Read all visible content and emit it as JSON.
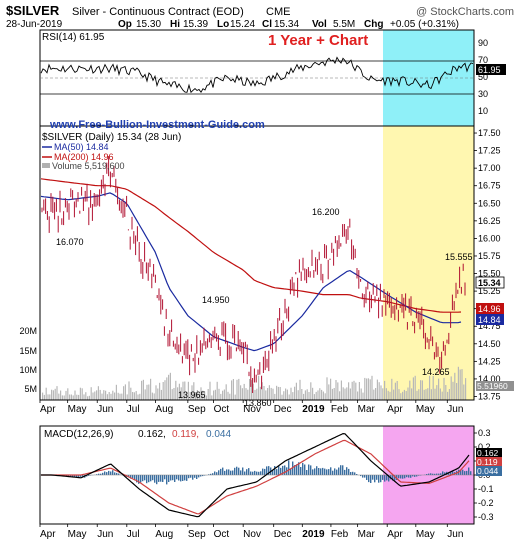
{
  "header": {
    "symbol": "$SILVER",
    "name": "Silver - Continuous Contract (EOD)",
    "exchange": "CME",
    "watermark": "@ StockCharts.com",
    "date": "28-Jun-2019",
    "op_label": "Op",
    "op": "15.30",
    "hi_label": "Hi",
    "hi": "15.39",
    "lo_label": "Lo",
    "lo": "15.24",
    "cl_label": "Cl",
    "cl": "15.34",
    "vol_label": "Vol",
    "vol": "5.5M",
    "chg_label": "Chg",
    "chg": "+0.05 (+0.31%)"
  },
  "colors": {
    "price": "#b01030",
    "ma50": "#1a2aa0",
    "ma200": "#c01010",
    "macd_line": "#000000",
    "macd_signal": "#d04040",
    "hist": "#3a6ea0",
    "rsi_highlight": "#8ff0f8",
    "price_highlight": "#fff7b0",
    "macd_highlight": "#f5a6f0",
    "volume": "#b0b0b0",
    "title_red": "#e02020",
    "url_blue": "#2040b0"
  },
  "rsi_panel": {
    "label": "RSI(14) 61.95",
    "title": "1 Year + Chart",
    "ticks": [
      "90",
      "70",
      "50",
      "30",
      "10"
    ],
    "badge": "61.95"
  },
  "price_panel": {
    "url": "www.Free-Bullion-Investment-Guide.com",
    "legend_main": "$SILVER (Daily) 15.34 (28 Jun)",
    "legend_ma50": "MA(50) 14.84",
    "legend_ma200": "MA(200) 14.96",
    "legend_volume": "Volume 5,519,600",
    "price_ticks": [
      "17.50",
      "17.25",
      "17.00",
      "16.75",
      "16.50",
      "16.25",
      "16.00",
      "15.75",
      "15.50",
      "15.25",
      "15.00",
      "14.75",
      "14.50",
      "14.25",
      "14.00",
      "13.75"
    ],
    "volume_ticks": [
      "20M",
      "15M",
      "10M",
      "5M"
    ],
    "badges": {
      "price": "15.34",
      "ma200": "14.96",
      "ma50": "14.84",
      "volume": "5.51960"
    },
    "annotations": {
      "a": "16.070",
      "b": "14.950",
      "c": "13.965",
      "d": "13.860",
      "e": "16.200",
      "f": "15.555",
      "g": "14.265"
    }
  },
  "macd_panel": {
    "label_name": "MACD(12,26,9)",
    "label_macd": "0.162,",
    "label_signal": "0.119,",
    "label_hist": "0.044",
    "ticks": [
      "0.3",
      "0.2",
      "0.1",
      "0.0",
      "-0.1",
      "-0.2",
      "-0.3"
    ],
    "badges": {
      "macd": "0.162",
      "signal": "0.119",
      "hist": "0.044"
    }
  },
  "x_axis": {
    "labels": [
      "Apr",
      "May",
      "Jun",
      "Jul",
      "Aug",
      "Sep",
      "Oct",
      "Nov",
      "Dec",
      "2019",
      "Feb",
      "Mar",
      "Apr",
      "May",
      "Jun"
    ]
  },
  "chart_data": [
    {
      "type": "line",
      "title": "",
      "name": "RSI(14)",
      "ylim": [
        0,
        100
      ],
      "reference_lines": [
        70,
        50,
        30
      ],
      "x": [
        "2018-06",
        "2018-07",
        "2018-08",
        "2018-09",
        "2018-10",
        "2018-11",
        "2018-12",
        "2019-01",
        "2019-02",
        "2019-03",
        "2019-04",
        "2019-05",
        "2019-06"
      ],
      "series": [
        {
          "name": "RSI(14)",
          "values": [
            60,
            55,
            42,
            38,
            50,
            43,
            55,
            65,
            70,
            48,
            47,
            42,
            61.95
          ]
        }
      ]
    },
    {
      "type": "line",
      "title": "$SILVER (Daily) 15.34 (28 Jun)",
      "ylim": [
        13.7,
        17.6
      ],
      "x": [
        "2018-04-02",
        "2018-05-01",
        "2018-06-01",
        "2018-06-15",
        "2018-07-02",
        "2018-08-01",
        "2018-08-15",
        "2018-09-04",
        "2018-10-01",
        "2018-11-01",
        "2018-11-13",
        "2018-12-03",
        "2019-01-02",
        "2019-01-24",
        "2019-02-20",
        "2019-03-04",
        "2019-04-01",
        "2019-05-01",
        "2019-05-28",
        "2019-06-14",
        "2019-06-28"
      ],
      "series": [
        {
          "name": "$SILVER",
          "values": [
            16.3,
            16.5,
            16.5,
            17.05,
            16.3,
            15.3,
            14.6,
            14.25,
            14.6,
            14.5,
            13.86,
            14.5,
            15.6,
            15.6,
            16.2,
            15.3,
            15.1,
            14.8,
            14.27,
            15.4,
            15.34
          ]
        },
        {
          "name": "MA(50)",
          "values": [
            16.6,
            16.55,
            16.6,
            16.65,
            16.5,
            15.8,
            15.3,
            14.9,
            14.6,
            14.45,
            14.4,
            14.5,
            14.9,
            15.3,
            15.55,
            15.45,
            15.2,
            14.95,
            14.8,
            14.8,
            14.84
          ]
        },
        {
          "name": "MA(200)",
          "values": [
            16.85,
            16.8,
            16.75,
            16.75,
            16.7,
            16.45,
            16.3,
            16.1,
            15.8,
            15.55,
            15.4,
            15.3,
            15.25,
            15.2,
            15.2,
            15.15,
            15.1,
            15.0,
            14.95,
            14.95,
            14.96
          ]
        }
      ],
      "annotations": [
        {
          "x": "2018-05-01",
          "y": 16.07,
          "text": "16.070"
        },
        {
          "x": "2018-10-01",
          "y": 14.95,
          "text": "14.950"
        },
        {
          "x": "2018-09-10",
          "y": 13.965,
          "text": "13.965"
        },
        {
          "x": "2018-11-13",
          "y": 13.86,
          "text": "13.860"
        },
        {
          "x": "2019-01-24",
          "y": 16.2,
          "text": "16.200"
        },
        {
          "x": "2019-06-14",
          "y": 15.555,
          "text": "15.555"
        },
        {
          "x": "2019-05-28",
          "y": 14.265,
          "text": "14.265"
        }
      ]
    },
    {
      "type": "bar",
      "name": "Volume",
      "ylabel": "",
      "ylim": [
        0,
        25000000
      ],
      "categories": [
        "2018-04",
        "2018-05",
        "2018-06",
        "2018-07",
        "2018-08",
        "2018-09",
        "2018-10",
        "2018-11",
        "2018-12",
        "2019-01",
        "2019-02",
        "2019-03",
        "2019-04",
        "2019-05",
        "2019-06"
      ],
      "series": [
        {
          "name": "Volume",
          "values": [
            2500000,
            2000000,
            2800000,
            3500000,
            4500000,
            3000000,
            3500000,
            4000000,
            3000000,
            4000000,
            3500000,
            4000000,
            3500000,
            4500000,
            5519600
          ]
        }
      ]
    },
    {
      "type": "line",
      "title": "MACD(12,26,9)",
      "ylim": [
        -0.35,
        0.35
      ],
      "x": [
        "2018-04",
        "2018-05",
        "2018-06",
        "2018-07",
        "2018-08",
        "2018-09",
        "2018-10",
        "2018-11",
        "2018-12",
        "2019-01",
        "2019-02",
        "2019-03",
        "2019-04",
        "2019-05",
        "2019-06",
        "2019-06-28"
      ],
      "series": [
        {
          "name": "MACD",
          "values": [
            0.0,
            -0.02,
            0.08,
            -0.1,
            -0.25,
            -0.3,
            -0.1,
            -0.05,
            0.1,
            0.2,
            0.3,
            0.1,
            -0.08,
            -0.05,
            0.05,
            0.162
          ]
        },
        {
          "name": "Signal",
          "values": [
            0.0,
            0.0,
            0.05,
            -0.05,
            -0.2,
            -0.28,
            -0.15,
            -0.08,
            0.02,
            0.15,
            0.25,
            0.15,
            -0.05,
            -0.06,
            0.02,
            0.119
          ]
        },
        {
          "name": "Histogram",
          "values": [
            0.0,
            -0.02,
            0.03,
            -0.05,
            -0.05,
            -0.02,
            0.05,
            0.03,
            0.08,
            0.05,
            0.05,
            -0.05,
            -0.03,
            0.01,
            0.03,
            0.044
          ]
        }
      ]
    }
  ]
}
